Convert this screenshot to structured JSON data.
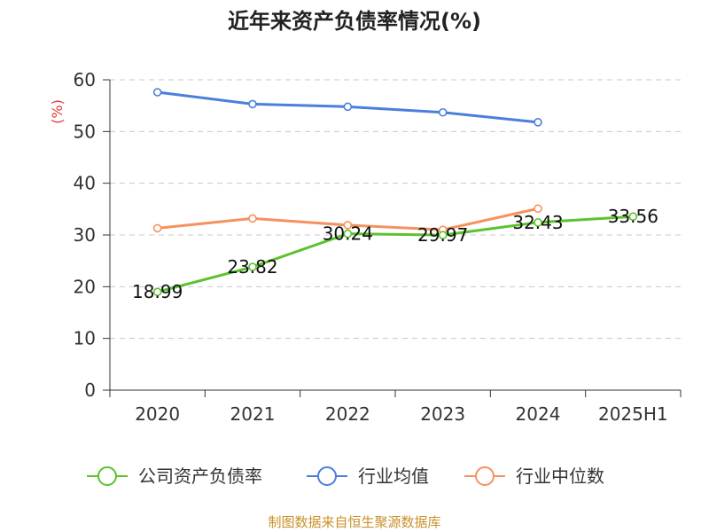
{
  "title": "近年来资产负债率情况(%)",
  "source": "制图数据来自恒生聚源数据库",
  "chart_data": {
    "type": "line",
    "title": "近年来资产负债率情况(%)",
    "ylabel": "(%)",
    "xlabel": "",
    "ylim": [
      0,
      60
    ],
    "yticks": [
      0,
      10,
      20,
      30,
      40,
      50,
      60
    ],
    "grid": true,
    "legend_position": "bottom",
    "categories": [
      "2020",
      "2021",
      "2022",
      "2023",
      "2024",
      "2025H1"
    ],
    "series": [
      {
        "name": "公司资产负债率",
        "color": "#5cc22e",
        "values": [
          18.99,
          23.82,
          30.24,
          29.97,
          32.43,
          33.56
        ],
        "data_labels": [
          "18.99",
          "23.82",
          "30.24",
          "29.97",
          "32.43",
          "33.56"
        ]
      },
      {
        "name": "行业均值",
        "color": "#4a7fdc",
        "values": [
          57.6,
          55.3,
          54.8,
          53.7,
          51.8,
          null
        ]
      },
      {
        "name": "行业中位数",
        "color": "#f5925f",
        "values": [
          31.3,
          33.2,
          31.9,
          31.0,
          35.1,
          null
        ]
      }
    ]
  }
}
